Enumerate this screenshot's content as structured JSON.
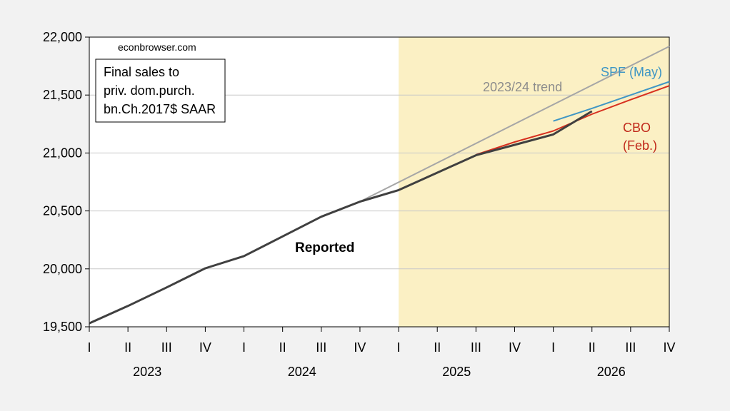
{
  "chart_data": {
    "type": "line",
    "watermark": "econbrowser.com",
    "legend_box_lines": [
      "Final sales to",
      "priv. dom.purch.",
      "bn.Ch.2017$ SAAR"
    ],
    "y_ticks": [
      "19,500",
      "20,000",
      "20,500",
      "21,000",
      "21,500",
      "22,000"
    ],
    "y_tick_values": [
      19500,
      20000,
      20500,
      21000,
      21500,
      22000
    ],
    "ylim": [
      19500,
      22000
    ],
    "grid": "horizontal",
    "quarters": [
      "I",
      "II",
      "III",
      "IV",
      "I",
      "II",
      "III",
      "IV",
      "I",
      "II",
      "III",
      "IV",
      "I",
      "II",
      "III",
      "IV"
    ],
    "years": [
      "2023",
      "2024",
      "2025",
      "2026"
    ],
    "shaded_region": {
      "from_index": 8,
      "to_index": 15,
      "color": "#fbf0c4"
    },
    "series": [
      {
        "name": "Reported",
        "color": "#404040",
        "label_color": "#000000",
        "x_index": [
          0,
          1,
          2,
          3,
          4,
          5,
          6,
          7,
          8,
          9,
          10,
          11,
          12,
          13
        ],
        "values": [
          19530,
          19680,
          19840,
          20005,
          20110,
          20280,
          20450,
          20580,
          20680,
          20830,
          20980,
          21070,
          21160,
          21360
        ]
      },
      {
        "name": "2023/24 trend",
        "color": "#a6a6a6",
        "label_color": "#8c8c8c",
        "x_index": [
          7,
          15
        ],
        "values": [
          20580,
          21920
        ]
      },
      {
        "name": "SPF (May)",
        "color": "#3f96c4",
        "label_color": "#3f96c4",
        "x_index": [
          12,
          13,
          14,
          15
        ],
        "values": [
          21275,
          21385,
          21500,
          21615
        ]
      },
      {
        "name": "CBO (Feb.)",
        "label_lines": [
          "CBO",
          "(Feb.)"
        ],
        "color": "#d7301f",
        "label_color": "#c0281a",
        "x_index": [
          10,
          11,
          12,
          13,
          14,
          15
        ],
        "values": [
          20985,
          21095,
          21190,
          21335,
          21460,
          21580
        ]
      }
    ]
  }
}
